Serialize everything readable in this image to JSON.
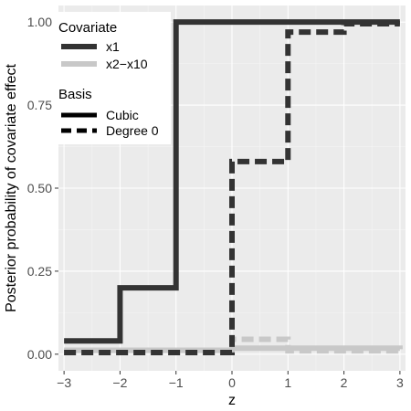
{
  "chart_data": {
    "type": "line",
    "xlabel": "z",
    "ylabel": "Posterior probability of covariate effect",
    "xlim": [
      -3.1,
      3.1
    ],
    "ylim": [
      -0.05,
      1.05
    ],
    "x_ticks": [
      -3,
      -2,
      -1,
      0,
      1,
      2,
      3
    ],
    "x_tick_labels": [
      "−3",
      "−2",
      "−1",
      "0",
      "1",
      "2",
      "3"
    ],
    "y_ticks": [
      0,
      0.25,
      0.5,
      0.75,
      1
    ],
    "y_tick_labels": [
      "0.00",
      "0.25",
      "0.50",
      "0.75",
      "1.00"
    ],
    "grid": true,
    "background": "#ebebeb",
    "colors": {
      "x1": "#333333",
      "x2_x10": "#c8c8c8"
    },
    "legend": {
      "covariate_title": "Covariate",
      "covariate_items": [
        {
          "label": "x1",
          "color": "#333333"
        },
        {
          "label": "x2−x10",
          "color": "#c8c8c8"
        }
      ],
      "basis_title": "Basis",
      "basis_items": [
        {
          "label": "Cubic",
          "dash": "solid"
        },
        {
          "label": "Degree 0",
          "dash": "dashed"
        }
      ],
      "placement": "top-left"
    },
    "series": [
      {
        "covariate": "x1",
        "basis": "Cubic",
        "step": true,
        "x": [
          -3,
          -2,
          -1,
          3
        ],
        "y": [
          0.04,
          0.2,
          1.0,
          1.0
        ]
      },
      {
        "covariate": "x1",
        "basis": "Degree 0",
        "step": true,
        "x": [
          -3,
          0,
          1,
          2,
          3
        ],
        "y": [
          0.005,
          0.58,
          0.97,
          0.995,
          0.995
        ]
      },
      {
        "covariate": "x2−x10",
        "basis": "Cubic",
        "step": true,
        "x": [
          -3,
          0,
          3
        ],
        "y": [
          0.012,
          0.018,
          0.015
        ]
      },
      {
        "covariate": "x2−x10",
        "basis": "Degree 0",
        "step": true,
        "x": [
          -3,
          0,
          1,
          3
        ],
        "y": [
          0.005,
          0.045,
          0.01,
          0.01
        ]
      }
    ]
  }
}
